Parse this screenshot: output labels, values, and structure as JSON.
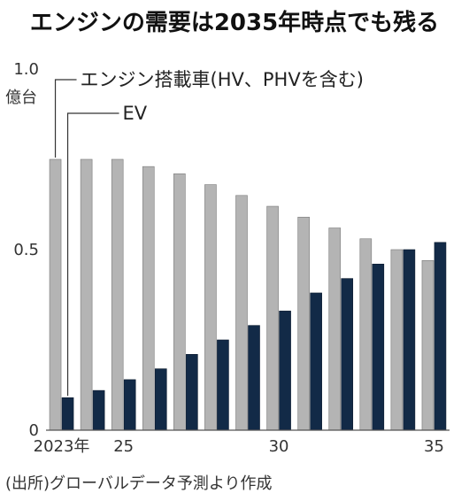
{
  "chart_data": {
    "type": "bar",
    "title": "エンジンの需要は2035年時点でも残る",
    "unit_label": "億台",
    "x": [
      2023,
      2024,
      2025,
      2026,
      2027,
      2028,
      2029,
      2030,
      2031,
      2032,
      2033,
      2034,
      2035
    ],
    "x_tick_labels": [
      {
        "x": 2023,
        "label": "2023年"
      },
      {
        "x": 2025,
        "label": "25"
      },
      {
        "x": 2030,
        "label": "30"
      },
      {
        "x": 2035,
        "label": "35"
      }
    ],
    "y_ticks": [
      {
        "value": 0,
        "label": "0"
      },
      {
        "value": 0.5,
        "label": "0.5"
      },
      {
        "value": 1.0,
        "label": "1.0"
      }
    ],
    "ylim": [
      0,
      1.0
    ],
    "series": [
      {
        "name": "エンジン搭載車(HV、PHVを含む)",
        "color": "#b4b4b4",
        "values": [
          0.75,
          0.75,
          0.75,
          0.73,
          0.71,
          0.68,
          0.65,
          0.62,
          0.59,
          0.56,
          0.53,
          0.5,
          0.47
        ]
      },
      {
        "name": "EV",
        "color": "#122a47",
        "values": [
          0.09,
          0.11,
          0.14,
          0.17,
          0.21,
          0.25,
          0.29,
          0.33,
          0.38,
          0.42,
          0.46,
          0.5,
          0.52
        ]
      }
    ],
    "source": "(出所)グローバルデータ予測より作成"
  }
}
